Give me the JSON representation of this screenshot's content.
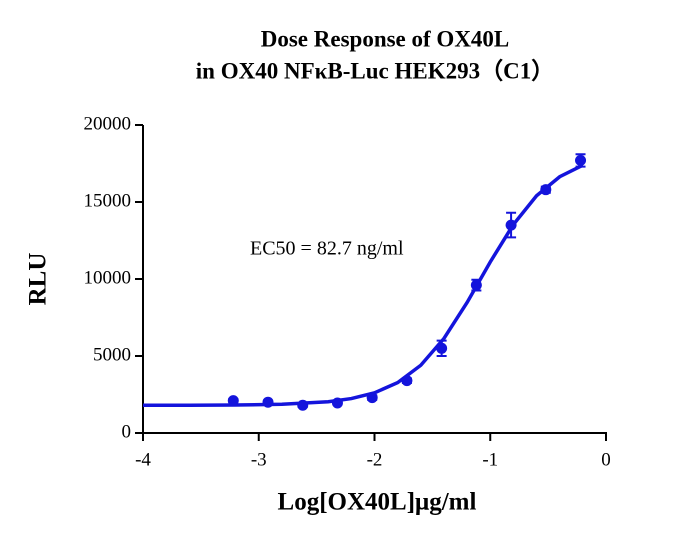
{
  "chart_data": {
    "type": "scatter",
    "title": [
      "Dose Response of OX40L",
      "in OX40 NFκB-Luc HEK293（C1）"
    ],
    "xlabel": "Log[OX40L]μg/ml",
    "ylabel": "RLU",
    "annotation": "EC50 = 82.7 ng/ml",
    "x": [
      -3.22,
      -2.92,
      -2.62,
      -2.32,
      -2.02,
      -1.72,
      -1.42,
      -1.12,
      -0.82,
      -0.52,
      -0.22
    ],
    "series": [
      {
        "color": "#1414dc",
        "values": [
          2100,
          2000,
          1800,
          1950,
          2300,
          3400,
          5500,
          9600,
          13500,
          15800,
          17700
        ],
        "errors": [
          100,
          100,
          100,
          100,
          150,
          150,
          500,
          350,
          800,
          200,
          400
        ]
      }
    ],
    "fit": {
      "color": "#1414dc",
      "x": [
        -4,
        -3.6,
        -3.2,
        -2.8,
        -2.4,
        -2.2,
        -2.0,
        -1.8,
        -1.6,
        -1.4,
        -1.2,
        -1.0,
        -0.8,
        -0.6,
        -0.4,
        -0.2
      ],
      "values": [
        1800,
        1805,
        1818,
        1864,
        2031,
        2235,
        2608,
        3273,
        4398,
        6136,
        8475,
        11106,
        13540,
        15405,
        16642,
        17387
      ]
    },
    "xlim": [
      -4,
      0
    ],
    "xticks": [
      -4,
      -3,
      -2,
      -1,
      0
    ],
    "ylim": [
      0,
      20000
    ],
    "yticks": [
      0,
      5000,
      10000,
      15000,
      20000
    ]
  }
}
